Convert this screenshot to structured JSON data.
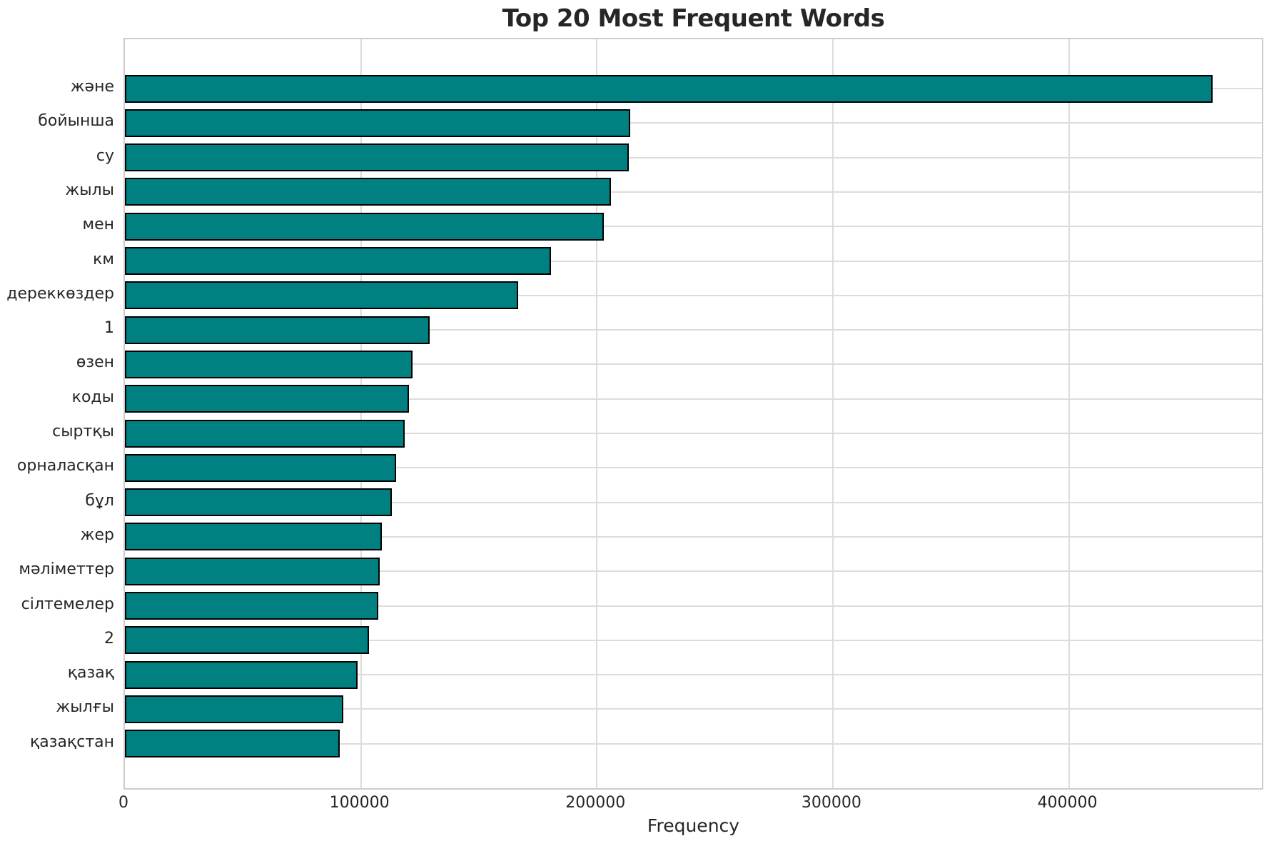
{
  "title": "Top 20 Most Frequent Words",
  "colors": {
    "bar_fill": "#008080",
    "bar_edge": "#000000",
    "grid": "#dcdcdc",
    "spine": "#cccccc",
    "text": "#262626",
    "background": "#ffffff"
  },
  "chart_data": {
    "type": "bar",
    "orientation": "horizontal",
    "title": "Top 20 Most Frequent Words",
    "xlabel": "Frequency",
    "ylabel": "",
    "legend": false,
    "grid": true,
    "categories": [
      "және",
      "бойынша",
      "су",
      "жылы",
      "мен",
      "км",
      "дереккөздер",
      "1",
      "өзен",
      "коды",
      "сыртқы",
      "орналасқан",
      "бұл",
      "жер",
      "мәліметтер",
      "сілтемелер",
      "2",
      "қазақ",
      "жылғы",
      "қазақстан"
    ],
    "values": [
      461000,
      214000,
      213500,
      206000,
      203000,
      180500,
      166500,
      129000,
      122000,
      120500,
      118500,
      115000,
      113000,
      109000,
      108000,
      107500,
      103500,
      98500,
      92500,
      91000
    ],
    "xlim": [
      0,
      483000
    ],
    "xticks": [
      0,
      100000,
      200000,
      300000,
      400000
    ],
    "bar_color": "#008080",
    "bar_edge_color": "#000000"
  }
}
